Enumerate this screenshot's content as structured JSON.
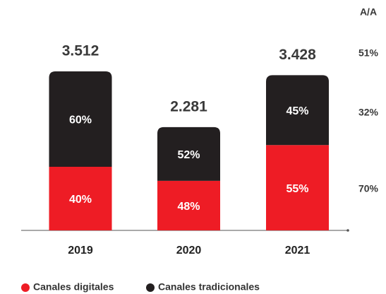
{
  "chart_data": {
    "type": "stacked-bar",
    "categories": [
      "2019",
      "2020",
      "2021"
    ],
    "totals": {
      "values": [
        3512,
        2281,
        3428
      ],
      "value_labels": [
        "3.512",
        "2.281",
        "3.428"
      ]
    },
    "series": [
      {
        "name": "Canales digitales",
        "color": "#ee1c25",
        "values": [
          40,
          48,
          55
        ],
        "value_labels": [
          "40%",
          "48%",
          "55%"
        ]
      },
      {
        "name": "Canales tradicionales",
        "color": "#231f20",
        "values": [
          60,
          52,
          45
        ],
        "value_labels": [
          "60%",
          "52%",
          "45%"
        ]
      }
    ],
    "yoy": {
      "title": "A/A",
      "values": [
        51,
        32,
        70
      ],
      "value_labels": [
        "51%",
        "32%",
        "70%"
      ]
    }
  }
}
